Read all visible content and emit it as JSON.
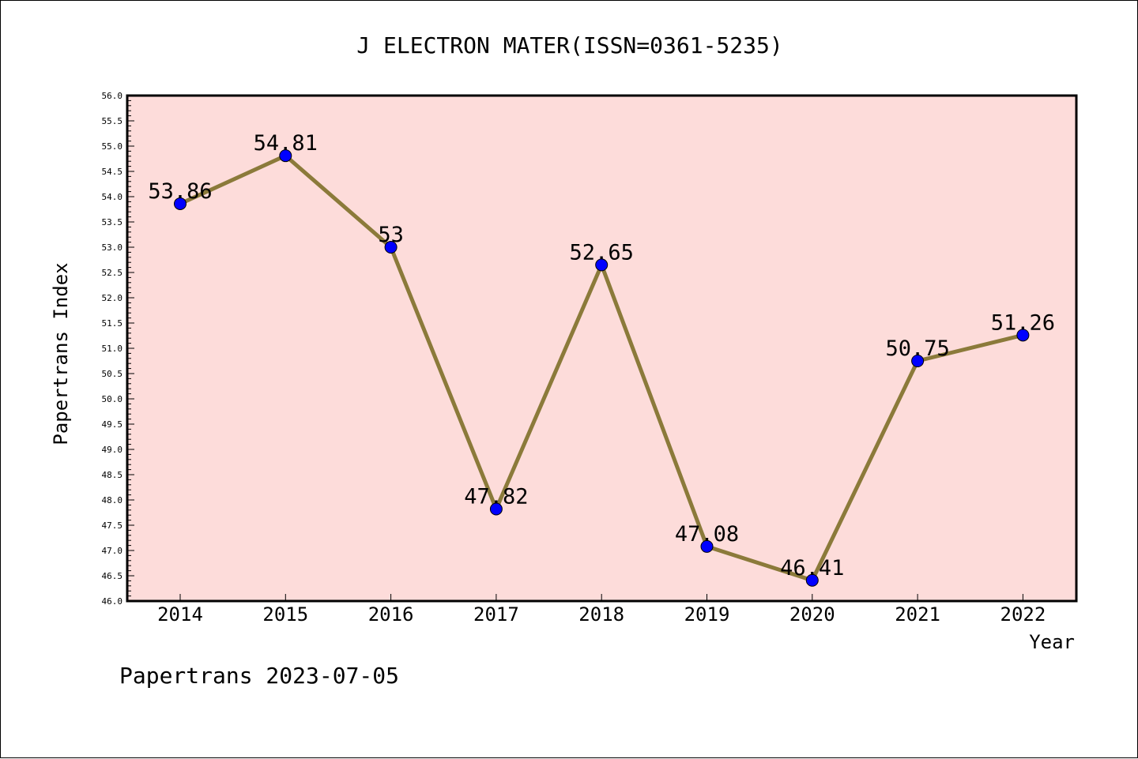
{
  "chart_data": {
    "type": "line",
    "title": "J ELECTRON MATER(ISSN=0361-5235)",
    "xlabel": "Year",
    "ylabel": "Papertrans Index",
    "categories": [
      "2014",
      "2015",
      "2016",
      "2017",
      "2018",
      "2019",
      "2020",
      "2021",
      "2022"
    ],
    "values": [
      53.86,
      54.81,
      53,
      47.82,
      52.65,
      47.08,
      46.41,
      50.75,
      51.26
    ],
    "data_labels": [
      "53.86",
      "54.81",
      "53",
      "47.82",
      "52.65",
      "47.08",
      "46.41",
      "50.75",
      "51.26"
    ],
    "ylim": [
      46.0,
      56.0
    ],
    "yticks": [
      "46.0",
      "46.5",
      "47.0",
      "47.5",
      "48.0",
      "48.5",
      "49.0",
      "49.5",
      "50.0",
      "50.5",
      "51.0",
      "51.5",
      "52.0",
      "52.5",
      "53.0",
      "53.5",
      "54.0",
      "54.5",
      "55.0",
      "55.5",
      "56.0"
    ],
    "grid": false,
    "line_color": "#8b7a3a",
    "marker_color": "#0000ff",
    "plot_background": "#fddcda"
  },
  "footer": "Papertrans 2023-07-05"
}
